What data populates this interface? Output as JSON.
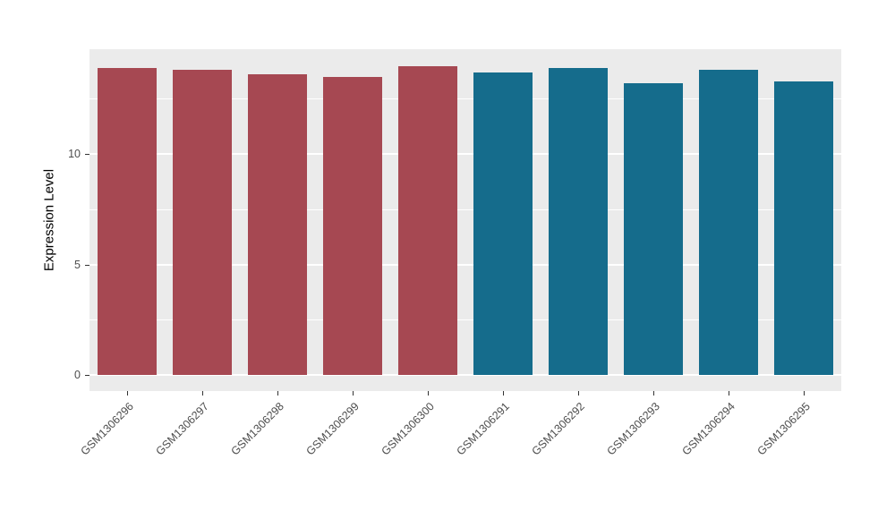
{
  "chart_data": {
    "type": "bar",
    "title": "",
    "xlabel": "",
    "ylabel": "Expression Level",
    "categories": [
      "GSM1306296",
      "GSM1306297",
      "GSM1306298",
      "GSM1306299",
      "GSM1306300",
      "GSM1306291",
      "GSM1306292",
      "GSM1306293",
      "GSM1306294",
      "GSM1306295"
    ],
    "values": [
      13.9,
      13.8,
      13.6,
      13.5,
      14.0,
      13.7,
      13.9,
      13.2,
      13.8,
      13.3
    ],
    "bar_colors": [
      "#A64852",
      "#A64852",
      "#A64852",
      "#A64852",
      "#A64852",
      "#156C8C",
      "#156C8C",
      "#156C8C",
      "#156C8C",
      "#156C8C"
    ],
    "group_colors": {
      "left_group": "#A64852",
      "right_group": "#156C8C"
    },
    "yticks": [
      0,
      5,
      10
    ],
    "ylim": [
      -0.72,
      14.75
    ],
    "grid": {
      "major": [
        0,
        5,
        10
      ],
      "minor": [
        2.5,
        7.5,
        12.5
      ]
    },
    "bar_width": 0.78,
    "panel_bg": "#EBEBEB",
    "grid_color": "#FFFFFF",
    "legend": "none",
    "x_label_rotation_deg": 45
  }
}
